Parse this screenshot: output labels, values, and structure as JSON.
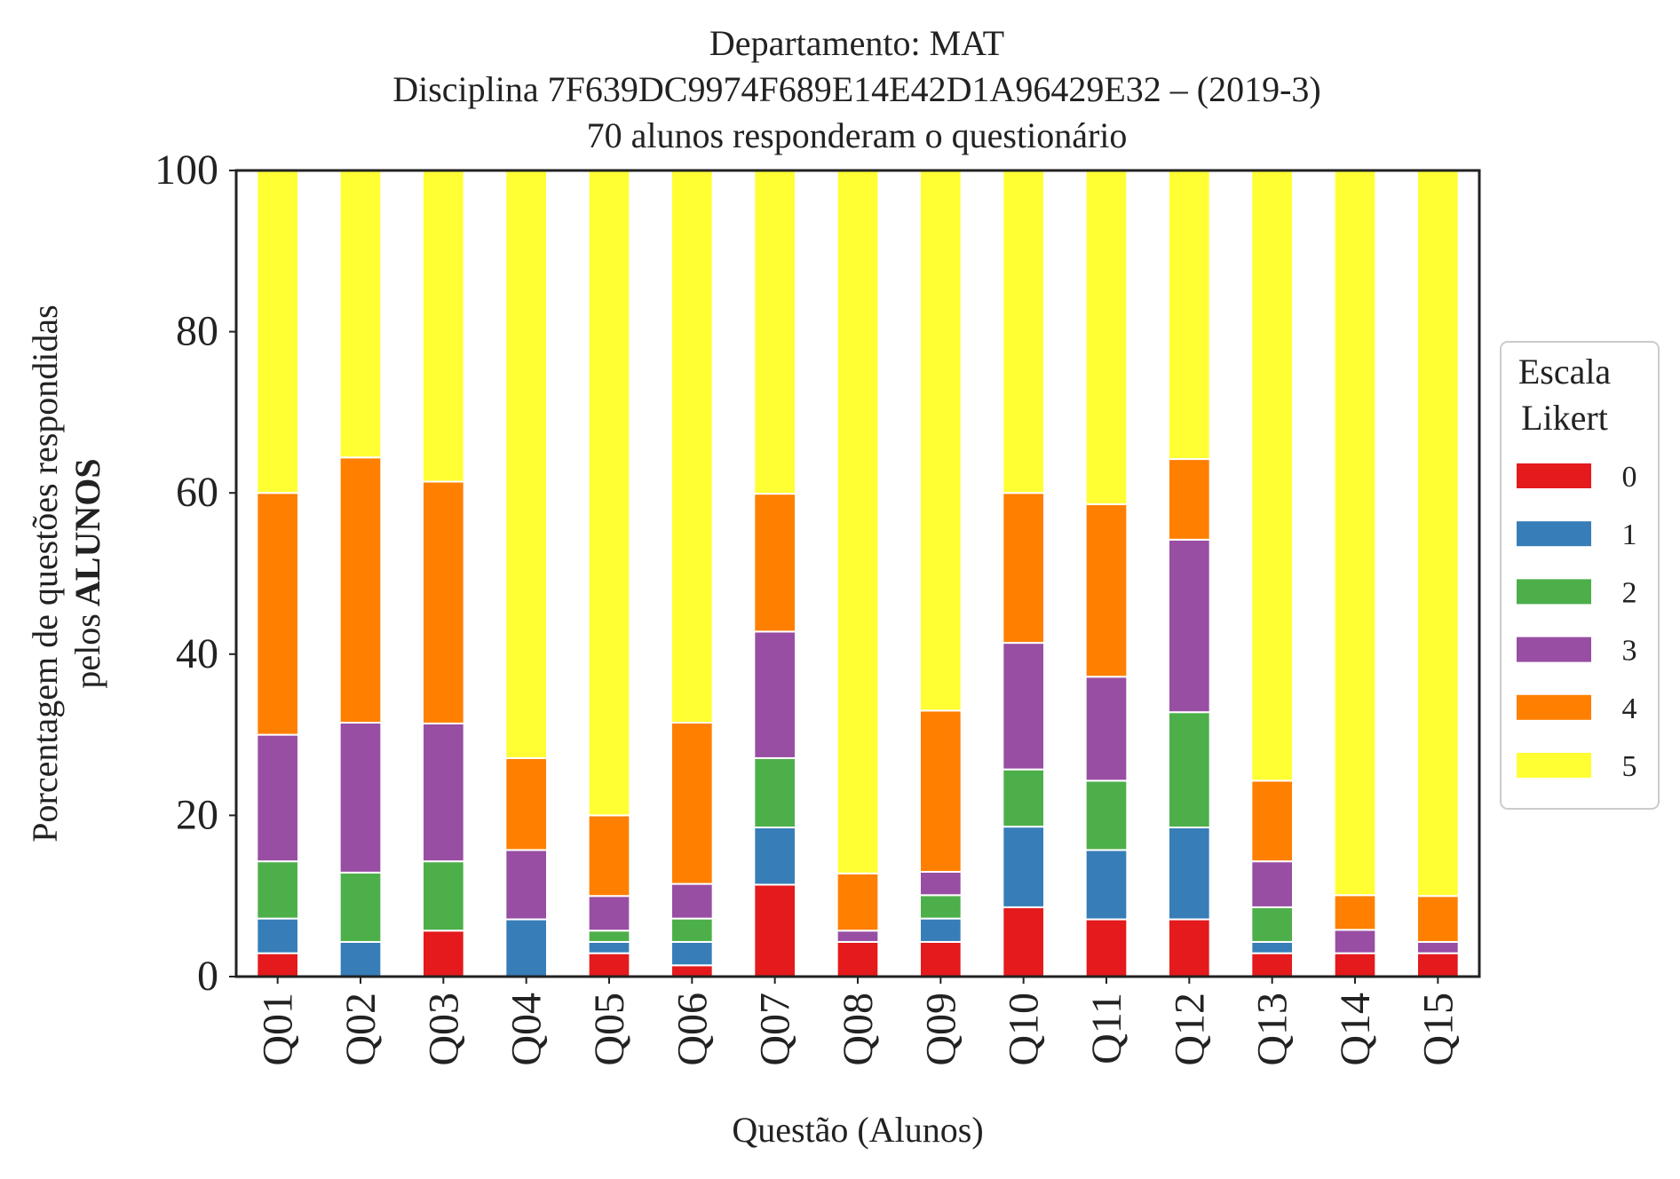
{
  "chart_data": {
    "type": "bar",
    "stacked": true,
    "title": "Departamento: MAT",
    "subtitle_lines": [
      "Disciplina 7F639DC9974F689E14E42D1A96429E32 – (2019-3)",
      "70 alunos responderam o questionário"
    ],
    "xlabel": "Questão (Alunos)",
    "ylabel_line1": "Porcentagem de questões respondidas",
    "ylabel_line2_prefix": "pelos",
    "ylabel_line2_bold": "ALUNOS",
    "ylim": [
      0,
      100
    ],
    "yticks": [
      0,
      20,
      40,
      60,
      80,
      100
    ],
    "ytick_labels": [
      "0",
      "20",
      "40",
      "60",
      "80",
      "100"
    ],
    "grid": false,
    "legend_position": "right",
    "legend_title_lines": [
      "Escala",
      "Likert"
    ],
    "categories": [
      "Q01",
      "Q02",
      "Q03",
      "Q04",
      "Q05",
      "Q06",
      "Q07",
      "Q08",
      "Q09",
      "Q10",
      "Q11",
      "Q12",
      "Q13",
      "Q14",
      "Q15"
    ],
    "series": [
      {
        "name": "0",
        "color": "#e41a1c",
        "values": [
          2.9,
          0.0,
          5.7,
          0.0,
          2.9,
          1.4,
          11.4,
          4.3,
          4.3,
          8.6,
          7.1,
          7.1,
          2.9,
          2.9,
          2.9
        ]
      },
      {
        "name": "1",
        "color": "#377eb8",
        "values": [
          4.3,
          4.3,
          0.0,
          7.1,
          1.4,
          2.9,
          7.1,
          0.0,
          2.9,
          10.0,
          8.6,
          11.4,
          1.4,
          0.0,
          0.0
        ]
      },
      {
        "name": "2",
        "color": "#4daf4a",
        "values": [
          7.1,
          8.6,
          8.6,
          0.0,
          1.4,
          2.9,
          8.6,
          0.0,
          2.9,
          7.1,
          8.6,
          14.3,
          4.3,
          0.0,
          0.0
        ]
      },
      {
        "name": "3",
        "color": "#984ea3",
        "values": [
          15.7,
          18.6,
          17.1,
          8.6,
          4.3,
          4.3,
          15.7,
          1.4,
          2.9,
          15.7,
          12.9,
          21.4,
          5.7,
          2.9,
          1.4
        ]
      },
      {
        "name": "4",
        "color": "#ff7f00",
        "values": [
          30.0,
          32.9,
          30.0,
          11.4,
          10.0,
          20.0,
          17.1,
          7.1,
          20.0,
          18.6,
          21.4,
          10.0,
          10.0,
          4.3,
          5.7
        ]
      },
      {
        "name": "5",
        "color": "#ffff33",
        "values": [
          40.0,
          35.6,
          38.6,
          72.9,
          80.0,
          68.5,
          40.1,
          87.2,
          67.0,
          40.0,
          41.4,
          35.8,
          75.7,
          89.9,
          90.0
        ]
      }
    ]
  }
}
